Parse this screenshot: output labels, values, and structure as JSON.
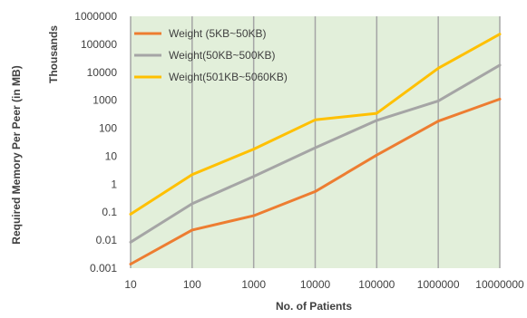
{
  "chart_data": {
    "type": "line",
    "xscale": "log",
    "yscale": "log",
    "categories": [
      "10",
      "100",
      "1000",
      "10000",
      "100000",
      "1000000",
      "10000000"
    ],
    "x": [
      10,
      100,
      1000,
      10000,
      100000,
      1000000,
      10000000
    ],
    "series": [
      {
        "name": "Weight (5KB~50KB)",
        "color": "#ED7D31",
        "values": [
          0.0014,
          0.023,
          0.075,
          0.55,
          11,
          180,
          1100
        ]
      },
      {
        "name": "Weight(50KB~500KB)",
        "color": "#A5A5A5",
        "values": [
          0.0085,
          0.2,
          1.9,
          20,
          190,
          950,
          18000
        ]
      },
      {
        "name": "Weight(501KB~5060KB)",
        "color": "#FFC000",
        "values": [
          0.085,
          2.2,
          18,
          200,
          340,
          14000,
          230000
        ]
      }
    ],
    "ytick_labels": [
      "1000000",
      "100000",
      "10000",
      "1000",
      "100",
      "10",
      "1",
      "0.1",
      "0.01",
      "0.001"
    ],
    "ylim": [
      0.001,
      1000000
    ],
    "xlabel": "No. of Patients",
    "ylabel": "Required Memory Per Peer (in MB)",
    "ysublabel": "Thousands",
    "plot_background": "#E2EFDA",
    "gridline_color": "#A5A5A5",
    "legend_position": "top-left"
  }
}
